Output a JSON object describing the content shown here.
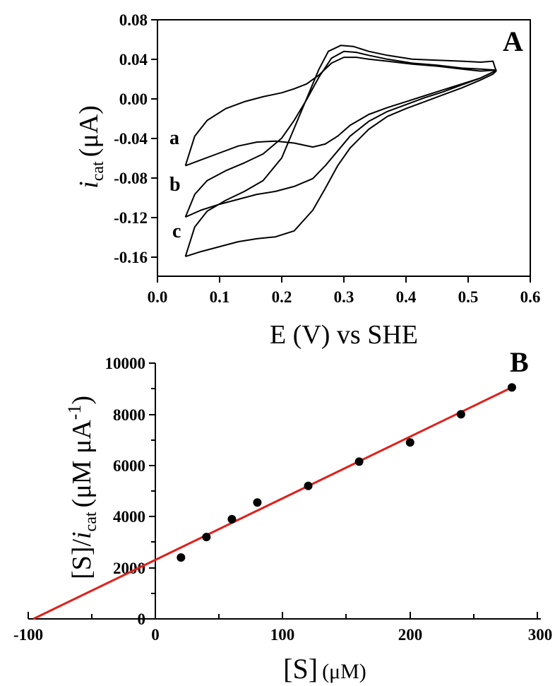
{
  "chart_data": [
    {
      "panel": "A",
      "type": "line",
      "xlabel": "E (V) vs SHE",
      "ylabel_main": "i",
      "ylabel_sub": "cat",
      "ylabel_unit": "(μA)",
      "xlim": [
        0.0,
        0.6
      ],
      "ylim": [
        -0.18,
        0.08
      ],
      "xticks": [
        "0.0",
        "0.1",
        "0.2",
        "0.3",
        "0.4",
        "0.5",
        "0.6"
      ],
      "yticks": [
        "0.08",
        "0.04",
        "0.00",
        "-0.04",
        "-0.08",
        "-0.12",
        "-0.16"
      ],
      "series": [
        {
          "name": "a",
          "forward": [
            [
              0.045,
              -0.068
            ],
            [
              0.07,
              -0.062
            ],
            [
              0.1,
              -0.055
            ],
            [
              0.13,
              -0.048
            ],
            [
              0.16,
              -0.044
            ],
            [
              0.19,
              -0.043
            ],
            [
              0.22,
              -0.045
            ],
            [
              0.25,
              -0.049
            ],
            [
              0.27,
              -0.046
            ],
            [
              0.29,
              -0.038
            ],
            [
              0.31,
              -0.027
            ],
            [
              0.34,
              -0.016
            ],
            [
              0.37,
              -0.009
            ],
            [
              0.4,
              -0.003
            ],
            [
              0.43,
              0.003
            ],
            [
              0.46,
              0.009
            ],
            [
              0.49,
              0.015
            ],
            [
              0.52,
              0.021
            ],
            [
              0.54,
              0.027
            ],
            [
              0.545,
              0.029
            ]
          ],
          "reverse": [
            [
              0.545,
              0.029
            ],
            [
              0.52,
              0.028
            ],
            [
              0.49,
              0.03
            ],
            [
              0.45,
              0.033
            ],
            [
              0.41,
              0.035
            ],
            [
              0.37,
              0.038
            ],
            [
              0.34,
              0.04
            ],
            [
              0.32,
              0.042
            ],
            [
              0.3,
              0.042
            ],
            [
              0.28,
              0.036
            ],
            [
              0.26,
              0.024
            ],
            [
              0.24,
              0.015
            ],
            [
              0.22,
              0.01
            ],
            [
              0.2,
              0.006
            ],
            [
              0.17,
              0.002
            ],
            [
              0.14,
              -0.003
            ],
            [
              0.11,
              -0.01
            ],
            [
              0.08,
              -0.022
            ],
            [
              0.06,
              -0.038
            ],
            [
              0.045,
              -0.068
            ]
          ]
        },
        {
          "name": "b",
          "forward": [
            [
              0.045,
              -0.12
            ],
            [
              0.07,
              -0.113
            ],
            [
              0.1,
              -0.107
            ],
            [
              0.13,
              -0.102
            ],
            [
              0.16,
              -0.097
            ],
            [
              0.19,
              -0.094
            ],
            [
              0.22,
              -0.089
            ],
            [
              0.25,
              -0.081
            ],
            [
              0.27,
              -0.068
            ],
            [
              0.29,
              -0.053
            ],
            [
              0.31,
              -0.038
            ],
            [
              0.34,
              -0.023
            ],
            [
              0.37,
              -0.013
            ],
            [
              0.4,
              -0.006
            ],
            [
              0.43,
              0.001
            ],
            [
              0.46,
              0.007
            ],
            [
              0.49,
              0.014
            ],
            [
              0.52,
              0.021
            ],
            [
              0.54,
              0.027
            ],
            [
              0.545,
              0.029
            ]
          ],
          "reverse": [
            [
              0.545,
              0.029
            ],
            [
              0.52,
              0.03
            ],
            [
              0.49,
              0.031
            ],
            [
              0.45,
              0.034
            ],
            [
              0.41,
              0.036
            ],
            [
              0.37,
              0.04
            ],
            [
              0.34,
              0.044
            ],
            [
              0.32,
              0.047
            ],
            [
              0.3,
              0.048
            ],
            [
              0.28,
              0.041
            ],
            [
              0.26,
              0.022
            ],
            [
              0.24,
              -0.001
            ],
            [
              0.22,
              -0.022
            ],
            [
              0.2,
              -0.04
            ],
            [
              0.17,
              -0.056
            ],
            [
              0.14,
              -0.065
            ],
            [
              0.11,
              -0.073
            ],
            [
              0.08,
              -0.083
            ],
            [
              0.06,
              -0.097
            ],
            [
              0.045,
              -0.12
            ]
          ]
        },
        {
          "name": "c",
          "forward": [
            [
              0.045,
              -0.16
            ],
            [
              0.07,
              -0.155
            ],
            [
              0.1,
              -0.15
            ],
            [
              0.13,
              -0.145
            ],
            [
              0.16,
              -0.142
            ],
            [
              0.19,
              -0.14
            ],
            [
              0.22,
              -0.134
            ],
            [
              0.25,
              -0.113
            ],
            [
              0.27,
              -0.091
            ],
            [
              0.29,
              -0.068
            ],
            [
              0.31,
              -0.05
            ],
            [
              0.34,
              -0.031
            ],
            [
              0.37,
              -0.018
            ],
            [
              0.4,
              -0.01
            ],
            [
              0.43,
              -0.003
            ],
            [
              0.46,
              0.004
            ],
            [
              0.49,
              0.011
            ],
            [
              0.52,
              0.019
            ],
            [
              0.54,
              0.025
            ],
            [
              0.545,
              0.028
            ]
          ],
          "reverse": [
            [
              0.545,
              0.028
            ],
            [
              0.54,
              0.038
            ],
            [
              0.52,
              0.037
            ],
            [
              0.49,
              0.038
            ],
            [
              0.45,
              0.039
            ],
            [
              0.41,
              0.04
            ],
            [
              0.37,
              0.044
            ],
            [
              0.34,
              0.048
            ],
            [
              0.315,
              0.053
            ],
            [
              0.295,
              0.054
            ],
            [
              0.275,
              0.048
            ],
            [
              0.26,
              0.03
            ],
            [
              0.24,
              0.0
            ],
            [
              0.22,
              -0.03
            ],
            [
              0.2,
              -0.06
            ],
            [
              0.17,
              -0.083
            ],
            [
              0.14,
              -0.094
            ],
            [
              0.11,
              -0.103
            ],
            [
              0.08,
              -0.114
            ],
            [
              0.06,
              -0.13
            ],
            [
              0.045,
              -0.16
            ]
          ]
        }
      ]
    },
    {
      "panel": "B",
      "type": "scatter",
      "xlabel_main": "[S]",
      "xlabel_unit": "(μM)",
      "ylabel_main": "[S]/",
      "ylabel_i": "i",
      "ylabel_sub": "cat",
      "ylabel_unit": "(μM μA",
      "ylabel_sup": "-1",
      "ylabel_close": ")",
      "xlim": [
        -100,
        300
      ],
      "ylim": [
        0,
        10000
      ],
      "xticks": [
        "-100",
        "0",
        "100",
        "200",
        "300"
      ],
      "yticks": [
        "10000",
        "8000",
        "6000",
        "4000",
        "2000",
        "0"
      ],
      "points": [
        [
          20,
          2400
        ],
        [
          40,
          3200
        ],
        [
          60,
          3900
        ],
        [
          80,
          4550
        ],
        [
          120,
          5200
        ],
        [
          160,
          6150
        ],
        [
          200,
          6900
        ],
        [
          240,
          8000
        ],
        [
          280,
          9050
        ]
      ],
      "fit_line": [
        [
          -96,
          0
        ],
        [
          280,
          9050
        ]
      ],
      "fit_color": "#e0201b",
      "point_color": "#000000"
    }
  ]
}
